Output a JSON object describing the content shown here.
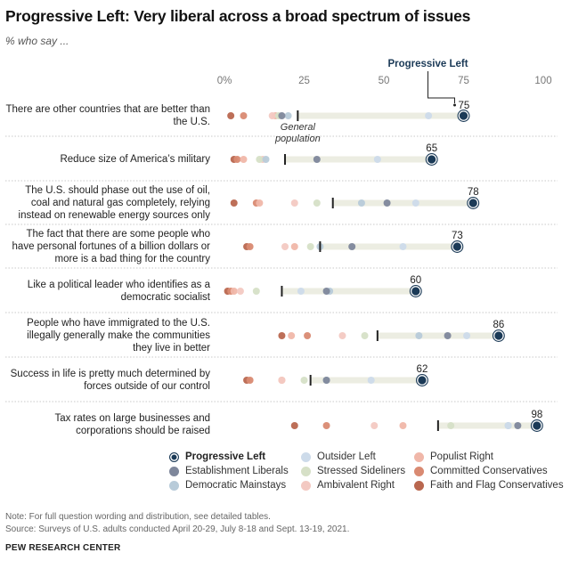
{
  "title": "Progressive Left: Very liberal across a broad spectrum of issues",
  "subtitle": "% who say ...",
  "chart_data": {
    "type": "dot_range",
    "x_ticks": [
      0,
      25,
      50,
      75,
      100
    ],
    "x_tick_labels": [
      "0%",
      "25",
      "50",
      "75",
      "100"
    ],
    "xlim": [
      0,
      100
    ],
    "highlight_label": "Progressive Left",
    "general_population_label": "General population",
    "groups": [
      {
        "key": "progressive_left",
        "name": "Progressive Left",
        "color": "#1b3a57",
        "highlight": true
      },
      {
        "key": "establishment_liberals",
        "name": "Establishment Liberals",
        "color": "#7e879b"
      },
      {
        "key": "democratic_mainstays",
        "name": "Democratic Mainstays",
        "color": "#b8cbd9"
      },
      {
        "key": "outsider_left",
        "name": "Outsider Left",
        "color": "#cddbea"
      },
      {
        "key": "stressed_sideliners",
        "name": "Stressed Sideliners",
        "color": "#d6e0c7"
      },
      {
        "key": "ambivalent_right",
        "name": "Ambivalent Right",
        "color": "#f3c9c2"
      },
      {
        "key": "populist_right",
        "name": "Populist Right",
        "color": "#f0b7a9"
      },
      {
        "key": "committed_conservatives",
        "name": "Committed Conservatives",
        "color": "#d98a72"
      },
      {
        "key": "faith_flag_conservatives",
        "name": "Faith and Flag Conservatives",
        "color": "#b9674f"
      }
    ],
    "rows": [
      {
        "label": "There are other countries that are better than the U.S.",
        "general_population": 23,
        "values": {
          "progressive_left": 75,
          "establishment_liberals": 18,
          "democratic_mainstays": 20,
          "outsider_left": 64,
          "stressed_sideliners": 17,
          "ambivalent_right": 15,
          "populist_right": 16,
          "committed_conservatives": 6,
          "faith_flag_conservatives": 2
        }
      },
      {
        "label": "Reduce size of America’s military",
        "general_population": 19,
        "values": {
          "progressive_left": 65,
          "establishment_liberals": 29,
          "democratic_mainstays": 13,
          "outsider_left": 48,
          "stressed_sideliners": 11,
          "ambivalent_right": 12,
          "populist_right": 6,
          "committed_conservatives": 4,
          "faith_flag_conservatives": 3
        }
      },
      {
        "label": "The U.S. should phase out the use of oil, coal and natural gas completely, relying instead on renewable energy sources only",
        "general_population": 34,
        "values": {
          "progressive_left": 78,
          "establishment_liberals": 51,
          "democratic_mainstays": 43,
          "outsider_left": 60,
          "stressed_sideliners": 29,
          "ambivalent_right": 22,
          "populist_right": 11,
          "committed_conservatives": 10,
          "faith_flag_conservatives": 3
        }
      },
      {
        "label": "The fact that there are some people who have personal fortunes of a billion dollars or more is a bad thing for the country",
        "general_population": 30,
        "values": {
          "progressive_left": 73,
          "establishment_liberals": 40,
          "democratic_mainstays": 30,
          "outsider_left": 56,
          "stressed_sideliners": 27,
          "ambivalent_right": 19,
          "populist_right": 22,
          "committed_conservatives": 8,
          "faith_flag_conservatives": 7
        }
      },
      {
        "label": "Like a political leader who identifies as a democratic socialist",
        "general_population": 18,
        "values": {
          "progressive_left": 60,
          "establishment_liberals": 32,
          "democratic_mainstays": 33,
          "outsider_left": 24,
          "stressed_sideliners": 10,
          "ambivalent_right": 5,
          "populist_right": 3,
          "committed_conservatives": 2,
          "faith_flag_conservatives": 1
        }
      },
      {
        "label": "People who have immigrated to the U.S. illegally generally make the communities they live in better",
        "general_population": 48,
        "values": {
          "progressive_left": 86,
          "establishment_liberals": 70,
          "democratic_mainstays": 61,
          "outsider_left": 76,
          "stressed_sideliners": 44,
          "ambivalent_right": 37,
          "populist_right": 21,
          "committed_conservatives": 26,
          "faith_flag_conservatives": 18
        }
      },
      {
        "label": "Success in life is pretty much determined by forces outside of our control",
        "general_population": 27,
        "values": {
          "progressive_left": 62,
          "establishment_liberals": 32,
          "democratic_mainstays": 32,
          "outsider_left": 46,
          "stressed_sideliners": 25,
          "ambivalent_right": 18,
          "populist_right": 18,
          "committed_conservatives": 8,
          "faith_flag_conservatives": 7
        }
      },
      {
        "label": "Tax rates on large businesses and corporations should be raised",
        "general_population": 67,
        "values": {
          "progressive_left": 98,
          "establishment_liberals": 92,
          "democratic_mainstays": 89,
          "outsider_left": 89,
          "stressed_sideliners": 71,
          "ambivalent_right": 47,
          "populist_right": 56,
          "committed_conservatives": 32,
          "faith_flag_conservatives": 22
        }
      }
    ],
    "annotations": [
      {
        "row": 0,
        "text": "General population",
        "target": "general_population"
      },
      {
        "row": 0,
        "text": "Progressive Left",
        "target": "progressive_left"
      }
    ]
  },
  "legend": {
    "items": [
      {
        "key": "progressive_left",
        "label": "Progressive Left"
      },
      {
        "key": "outsider_left",
        "label": "Outsider Left"
      },
      {
        "key": "populist_right",
        "label": "Populist Right"
      },
      {
        "key": "establishment_liberals",
        "label": "Establishment Liberals"
      },
      {
        "key": "stressed_sideliners",
        "label": "Stressed Sideliners"
      },
      {
        "key": "committed_conservatives",
        "label": "Committed Conservatives"
      },
      {
        "key": "democratic_mainstays",
        "label": "Democratic Mainstays"
      },
      {
        "key": "ambivalent_right",
        "label": "Ambivalent Right"
      },
      {
        "key": "faith_flag_conservatives",
        "label": "Faith and Flag Conservatives"
      }
    ]
  },
  "footer": {
    "note": "Note: For full question wording and distribution, see detailed tables.",
    "source": "Source: Surveys of U.S. adults conducted April 20-29, July 8-18 and Sept. 13-19, 2021.",
    "brand": "PEW RESEARCH CENTER"
  }
}
